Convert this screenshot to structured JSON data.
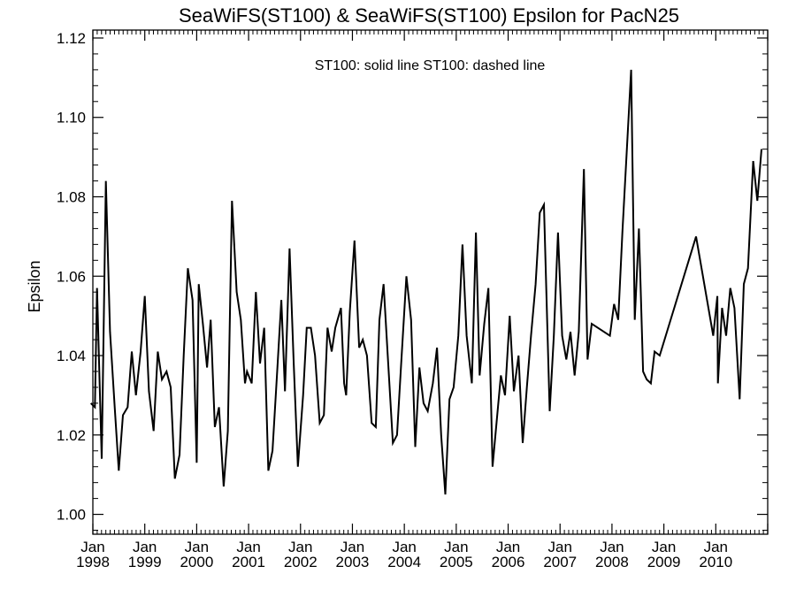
{
  "chart_data": {
    "type": "line",
    "title": "SeaWiFS(ST100) & SeaWiFS(ST100)  Epsilon for PacN25",
    "annotation": "ST100: solid line   ST100: dashed line",
    "ylabel": "Epsilon",
    "xlabel": "",
    "ylim": [
      0.995,
      1.122
    ],
    "y_ticks": [
      "1.00",
      "1.02",
      "1.04",
      "1.06",
      "1.08",
      "1.10",
      "1.12"
    ],
    "xlim": [
      1998.0,
      2011.0
    ],
    "x_ticks": [
      {
        "month": "Jan",
        "year": "1998"
      },
      {
        "month": "Jan",
        "year": "1999"
      },
      {
        "month": "Jan",
        "year": "2000"
      },
      {
        "month": "Jan",
        "year": "2001"
      },
      {
        "month": "Jan",
        "year": "2002"
      },
      {
        "month": "Jan",
        "year": "2003"
      },
      {
        "month": "Jan",
        "year": "2004"
      },
      {
        "month": "Jan",
        "year": "2005"
      },
      {
        "month": "Jan",
        "year": "2006"
      },
      {
        "month": "Jan",
        "year": "2007"
      },
      {
        "month": "Jan",
        "year": "2008"
      },
      {
        "month": "Jan",
        "year": "2009"
      },
      {
        "month": "Jan",
        "year": "2010"
      }
    ],
    "grid": false,
    "series": [
      {
        "name": "ST100",
        "style": "solid",
        "color": "#000000",
        "points": [
          [
            1997.96,
            1.028
          ],
          [
            1998.04,
            1.027
          ],
          [
            1998.08,
            1.057
          ],
          [
            1998.17,
            1.014
          ],
          [
            1998.25,
            1.084
          ],
          [
            1998.33,
            1.046
          ],
          [
            1998.42,
            1.027
          ],
          [
            1998.5,
            1.011
          ],
          [
            1998.58,
            1.025
          ],
          [
            1998.67,
            1.027
          ],
          [
            1998.75,
            1.041
          ],
          [
            1998.83,
            1.03
          ],
          [
            1998.92,
            1.041
          ],
          [
            1999.0,
            1.055
          ],
          [
            1999.08,
            1.031
          ],
          [
            1999.17,
            1.021
          ],
          [
            1999.25,
            1.041
          ],
          [
            1999.33,
            1.034
          ],
          [
            1999.42,
            1.036
          ],
          [
            1999.5,
            1.032
          ],
          [
            1999.58,
            1.009
          ],
          [
            1999.67,
            1.015
          ],
          [
            1999.75,
            1.04
          ],
          [
            1999.83,
            1.062
          ],
          [
            1999.92,
            1.054
          ],
          [
            2000.0,
            1.013
          ],
          [
            2000.04,
            1.058
          ],
          [
            2000.12,
            1.048
          ],
          [
            2000.2,
            1.037
          ],
          [
            2000.27,
            1.049
          ],
          [
            2000.35,
            1.022
          ],
          [
            2000.43,
            1.027
          ],
          [
            2000.52,
            1.007
          ],
          [
            2000.6,
            1.021
          ],
          [
            2000.68,
            1.079
          ],
          [
            2000.77,
            1.056
          ],
          [
            2000.85,
            1.049
          ],
          [
            2000.93,
            1.033
          ],
          [
            2000.97,
            1.036
          ],
          [
            2001.06,
            1.033
          ],
          [
            2001.14,
            1.056
          ],
          [
            2001.22,
            1.038
          ],
          [
            2001.3,
            1.047
          ],
          [
            2001.38,
            1.011
          ],
          [
            2001.46,
            1.016
          ],
          [
            2001.55,
            1.036
          ],
          [
            2001.63,
            1.054
          ],
          [
            2001.7,
            1.031
          ],
          [
            2001.79,
            1.067
          ],
          [
            2001.87,
            1.038
          ],
          [
            2001.95,
            1.012
          ],
          [
            2002.05,
            1.03
          ],
          [
            2002.12,
            1.047
          ],
          [
            2002.2,
            1.047
          ],
          [
            2002.28,
            1.04
          ],
          [
            2002.37,
            1.023
          ],
          [
            2002.45,
            1.025
          ],
          [
            2002.52,
            1.047
          ],
          [
            2002.6,
            1.041
          ],
          [
            2002.67,
            1.047
          ],
          [
            2002.78,
            1.052
          ],
          [
            2002.84,
            1.033
          ],
          [
            2002.88,
            1.03
          ],
          [
            2002.95,
            1.051
          ],
          [
            2003.04,
            1.069
          ],
          [
            2003.13,
            1.042
          ],
          [
            2003.2,
            1.044
          ],
          [
            2003.28,
            1.04
          ],
          [
            2003.37,
            1.023
          ],
          [
            2003.45,
            1.022
          ],
          [
            2003.52,
            1.049
          ],
          [
            2003.6,
            1.058
          ],
          [
            2003.68,
            1.04
          ],
          [
            2003.78,
            1.018
          ],
          [
            2003.86,
            1.02
          ],
          [
            2003.94,
            1.038
          ],
          [
            2004.04,
            1.06
          ],
          [
            2004.13,
            1.049
          ],
          [
            2004.21,
            1.017
          ],
          [
            2004.29,
            1.037
          ],
          [
            2004.37,
            1.028
          ],
          [
            2004.45,
            1.026
          ],
          [
            2004.55,
            1.033
          ],
          [
            2004.63,
            1.042
          ],
          [
            2004.71,
            1.02
          ],
          [
            2004.79,
            1.005
          ],
          [
            2004.87,
            1.029
          ],
          [
            2004.95,
            1.032
          ],
          [
            2005.04,
            1.045
          ],
          [
            2005.12,
            1.068
          ],
          [
            2005.2,
            1.045
          ],
          [
            2005.3,
            1.033
          ],
          [
            2005.38,
            1.071
          ],
          [
            2005.45,
            1.035
          ],
          [
            2005.54,
            1.048
          ],
          [
            2005.62,
            1.057
          ],
          [
            2005.7,
            1.012
          ],
          [
            2005.79,
            1.025
          ],
          [
            2005.86,
            1.035
          ],
          [
            2005.94,
            1.03
          ],
          [
            2006.03,
            1.05
          ],
          [
            2006.11,
            1.031
          ],
          [
            2006.2,
            1.04
          ],
          [
            2006.28,
            1.018
          ],
          [
            2006.36,
            1.032
          ],
          [
            2006.44,
            1.045
          ],
          [
            2006.53,
            1.058
          ],
          [
            2006.61,
            1.076
          ],
          [
            2006.69,
            1.078
          ],
          [
            2006.8,
            1.026
          ],
          [
            2006.88,
            1.045
          ],
          [
            2006.96,
            1.071
          ],
          [
            2007.04,
            1.045
          ],
          [
            2007.12,
            1.039
          ],
          [
            2007.2,
            1.046
          ],
          [
            2007.28,
            1.035
          ],
          [
            2007.36,
            1.046
          ],
          [
            2007.46,
            1.087
          ],
          [
            2007.53,
            1.039
          ],
          [
            2007.61,
            1.048
          ],
          [
            2007.96,
            1.045
          ],
          [
            2008.04,
            1.053
          ],
          [
            2008.12,
            1.049
          ],
          [
            2008.2,
            1.071
          ],
          [
            2008.37,
            1.112
          ],
          [
            2008.44,
            1.049
          ],
          [
            2008.52,
            1.072
          ],
          [
            2008.6,
            1.036
          ],
          [
            2008.67,
            1.034
          ],
          [
            2008.75,
            1.033
          ],
          [
            2008.82,
            1.041
          ],
          [
            2008.92,
            1.04
          ],
          [
            2009.62,
            1.07
          ],
          [
            2009.95,
            1.045
          ],
          [
            2010.03,
            1.055
          ],
          [
            2010.04,
            1.033
          ],
          [
            2010.12,
            1.052
          ],
          [
            2010.2,
            1.045
          ],
          [
            2010.28,
            1.057
          ],
          [
            2010.36,
            1.052
          ],
          [
            2010.46,
            1.029
          ],
          [
            2010.54,
            1.058
          ],
          [
            2010.62,
            1.062
          ],
          [
            2010.72,
            1.089
          ],
          [
            2010.8,
            1.079
          ],
          [
            2010.88,
            1.092
          ]
        ]
      }
    ]
  }
}
